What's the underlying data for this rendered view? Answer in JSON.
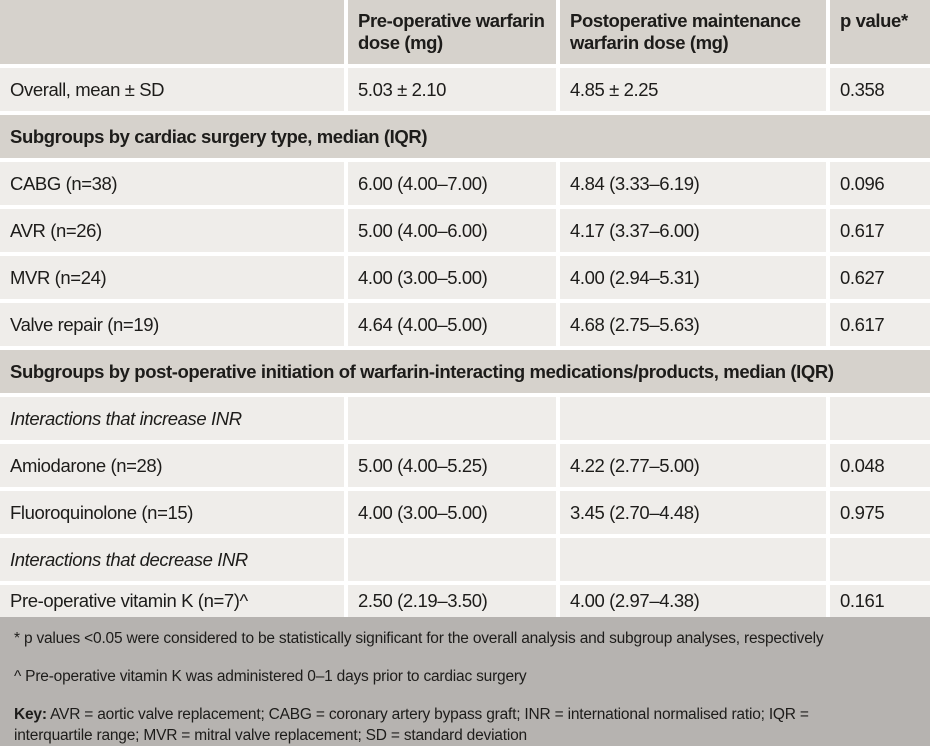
{
  "colors": {
    "band_bg": "#d6d2cc",
    "row_bg": "#efedea",
    "gap": "#ffffff",
    "footer_bg": "#b6b3b0",
    "rule": "#1b1a18",
    "text": "#1d1c1a"
  },
  "table": {
    "columns": [
      "",
      "Pre-operative warfarin dose (mg)",
      "Postoperative maintenance warfarin dose (mg)",
      "p value*"
    ],
    "rows": [
      {
        "type": "data",
        "label": "Overall, mean ± SD",
        "pre": "5.03 ± 2.10",
        "post": "4.85 ± 2.25",
        "p": "0.358"
      },
      {
        "type": "section",
        "label": "Subgroups by cardiac surgery type, median (IQR)"
      },
      {
        "type": "data",
        "label": "CABG (n=38)",
        "pre": "6.00 (4.00–7.00)",
        "post": "4.84 (3.33–6.19)",
        "p": "0.096"
      },
      {
        "type": "data",
        "label": "AVR (n=26)",
        "pre": "5.00 (4.00–6.00)",
        "post": "4.17 (3.37–6.00)",
        "p": "0.617"
      },
      {
        "type": "data",
        "label": "MVR (n=24)",
        "pre": "4.00 (3.00–5.00)",
        "post": "4.00 (2.94–5.31)",
        "p": "0.627"
      },
      {
        "type": "data",
        "label": "Valve repair (n=19)",
        "pre": "4.64 (4.00–5.00)",
        "post": "4.68 (2.75–5.63)",
        "p": "0.617"
      },
      {
        "type": "section",
        "label": "Subgroups by post-operative initiation of warfarin-interacting medications/products, median (IQR)"
      },
      {
        "type": "subhead",
        "label": "Interactions that increase INR",
        "pre": "",
        "post": "",
        "p": ""
      },
      {
        "type": "data",
        "label": "Amiodarone (n=28)",
        "pre": "5.00 (4.00–5.25)",
        "post": "4.22 (2.77–5.00)",
        "p": "0.048"
      },
      {
        "type": "data",
        "label": "Fluoroquinolone (n=15)",
        "pre": "4.00 (3.00–5.00)",
        "post": "3.45 (2.70–4.48)",
        "p": "0.975"
      },
      {
        "type": "subhead",
        "label": "Interactions that decrease INR",
        "pre": "",
        "post": "",
        "p": ""
      },
      {
        "type": "data",
        "label": "Pre-operative vitamin K (n=7)^",
        "pre": "2.50 (2.19–3.50)",
        "post": "4.00 (2.97–4.38)",
        "p": "0.161"
      }
    ]
  },
  "footnotes": {
    "pvalue_note": "* p values <0.05 were considered to be statistically significant for the overall analysis and subgroup analyses, respectively",
    "vitamin_k_note": "^ Pre-operative vitamin K was administered 0–1 days prior to cardiac surgery",
    "key_label": "Key:",
    "key_text": "AVR = aortic valve replacement; CABG = coronary artery bypass graft; INR = international normalised ratio; IQR = interquartile range; MVR = mitral valve replacement; SD = standard deviation"
  }
}
